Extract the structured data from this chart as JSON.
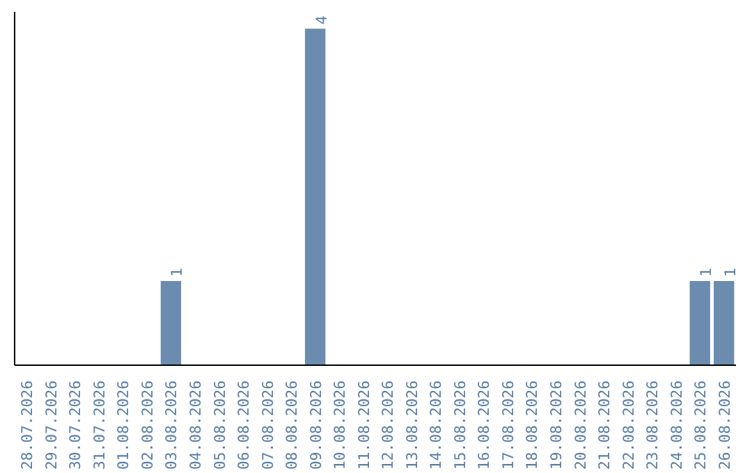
{
  "chart_data": {
    "type": "bar",
    "categories": [
      "28.07.2026",
      "29.07.2026",
      "30.07.2026",
      "31.07.2026",
      "01.08.2026",
      "02.08.2026",
      "03.08.2026",
      "04.08.2026",
      "05.08.2026",
      "06.08.2026",
      "07.08.2026",
      "08.08.2026",
      "09.08.2026",
      "10.08.2026",
      "11.08.2026",
      "12.08.2026",
      "13.08.2026",
      "14.08.2026",
      "15.08.2026",
      "16.08.2026",
      "17.08.2026",
      "18.08.2026",
      "19.08.2026",
      "20.08.2026",
      "21.08.2026",
      "22.08.2026",
      "23.08.2026",
      "24.08.2026",
      "25.08.2026",
      "26.08.2026"
    ],
    "values": [
      0,
      0,
      0,
      0,
      0,
      0,
      1,
      0,
      0,
      0,
      0,
      0,
      4,
      0,
      0,
      0,
      0,
      0,
      0,
      0,
      0,
      0,
      0,
      0,
      0,
      0,
      0,
      0,
      1,
      1
    ],
    "value_labels": [
      null,
      null,
      null,
      null,
      null,
      null,
      "1",
      null,
      null,
      null,
      null,
      null,
      "4",
      null,
      null,
      null,
      null,
      null,
      null,
      null,
      null,
      null,
      null,
      null,
      null,
      null,
      null,
      null,
      "1",
      "1"
    ],
    "color": "#6b8cae",
    "grid": false,
    "tick_labels": "x"
  }
}
